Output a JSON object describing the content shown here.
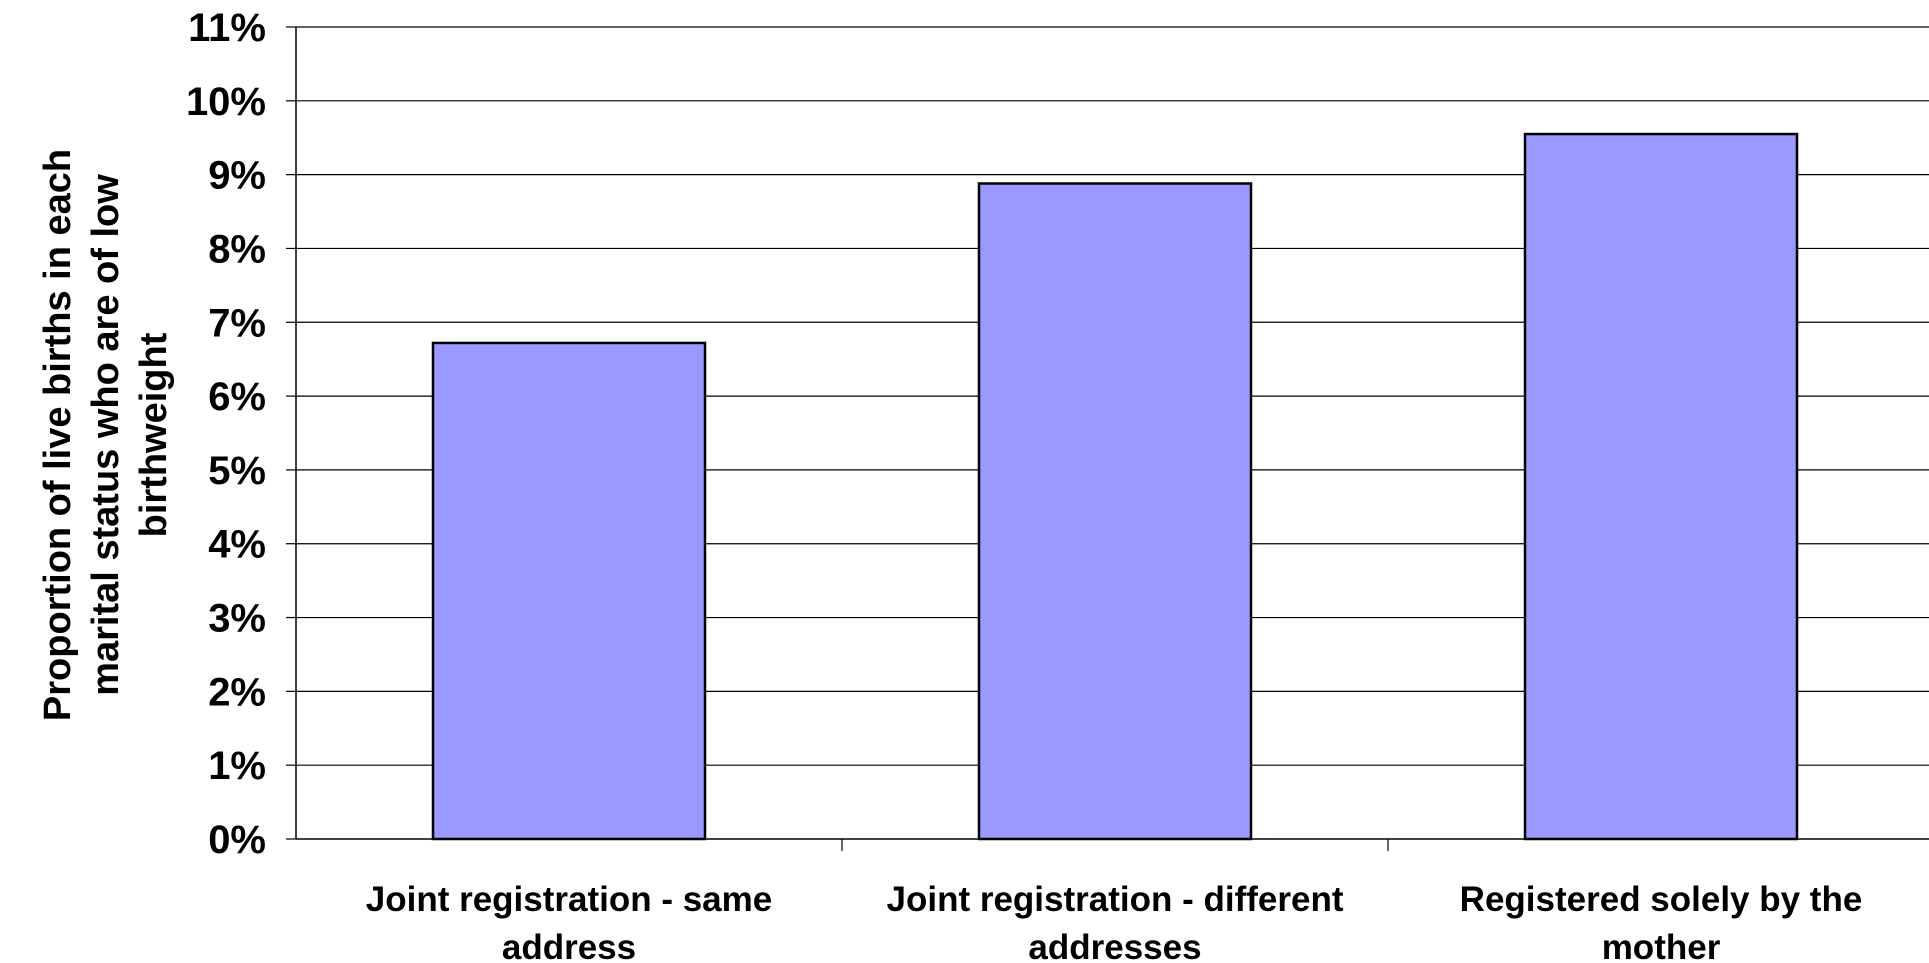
{
  "chart_data": {
    "type": "bar",
    "title": "",
    "categories": [
      "Joint registration - same address",
      "Joint registration - different addresses",
      "Registered solely by the mother"
    ],
    "category_lines": [
      [
        "Joint registration - same",
        "address"
      ],
      [
        "Joint registration - different",
        "addresses"
      ],
      [
        "Registered solely by the",
        "mother"
      ]
    ],
    "values": [
      6.72,
      8.88,
      9.55
    ],
    "value_unit": "%",
    "ylabel": "Proportion of live births in each marital status who are of low birthweight",
    "ylabel_lines": [
      "Proportion of live births in each",
      "marital status who are of low",
      "birthweight"
    ],
    "yticks": [
      "0%",
      "1%",
      "2%",
      "3%",
      "4%",
      "5%",
      "6%",
      "7%",
      "8%",
      "9%",
      "10%",
      "11%"
    ],
    "ylim": [
      0,
      11
    ],
    "grid": true,
    "legend": "none",
    "bar_color": "#9999ff",
    "bar_edge_color": "#000000"
  }
}
